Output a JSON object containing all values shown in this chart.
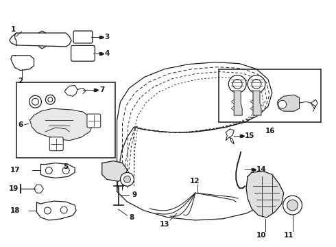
{
  "bg_color": "#ffffff",
  "line_color": "#1a1a1a",
  "fig_w": 4.9,
  "fig_h": 3.6,
  "dpi": 100
}
